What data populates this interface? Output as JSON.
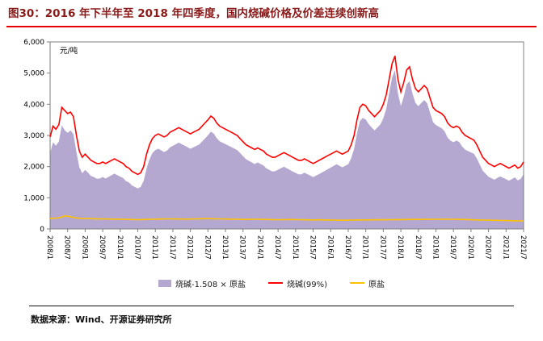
{
  "title": {
    "text": "图30：2016 年下半年至 2018 年四季度，国内烧碱价格及价差连续创新高"
  },
  "footer": {
    "text": "数据来源：Wind、开源证券研究所"
  },
  "colors": {
    "title": "#8b1a1a",
    "title_underline": "#e60000",
    "area": "#b5a8d0",
    "caustic_line": "#ff0000",
    "salt_line": "#ffc000"
  },
  "chart_data": {
    "type": "area",
    "title": "",
    "unit_label": "元/吨",
    "x_start": "2008/1",
    "x_end": "2021/7",
    "x_interval": "monthly",
    "legend_position": "bottom",
    "grid": false,
    "x_tick_labels": [
      "2008/1",
      "2008/7",
      "2009/1",
      "2009/7",
      "2010/1",
      "2010/7",
      "2011/1",
      "2011/7",
      "2012/1",
      "2012/7",
      "2013/1",
      "2013/7",
      "2014/1",
      "2014/7",
      "2015/1",
      "2015/7",
      "2016/1",
      "2016/7",
      "2017/1",
      "2017/7",
      "2018/1",
      "2018/7",
      "2019/1",
      "2019/7",
      "2020/1",
      "2020/7",
      "2021/1",
      "2021/7"
    ],
    "y_axis": {
      "min": 0,
      "max": 6000,
      "step": 1000,
      "tick_labels": [
        "0",
        "1,000",
        "2,000",
        "3,000",
        "4,000",
        "5,000",
        "6,000"
      ]
    },
    "series": [
      {
        "name": "烧碱-1.508 × 原盐",
        "type": "area",
        "color": "#b5a8d0",
        "multiplier": 1.508,
        "formula": "烧碱(99%) - 1.508 × 原盐"
      },
      {
        "name": "烧碱(99%)",
        "type": "line",
        "color": "#ff0000",
        "values": [
          2950,
          3300,
          3200,
          3350,
          3900,
          3800,
          3700,
          3750,
          3600,
          3000,
          2500,
          2300,
          2400,
          2300,
          2200,
          2150,
          2100,
          2100,
          2150,
          2100,
          2150,
          2200,
          2250,
          2200,
          2150,
          2100,
          2000,
          1950,
          1850,
          1800,
          1750,
          1800,
          2000,
          2400,
          2700,
          2900,
          3000,
          3050,
          3000,
          2950,
          3000,
          3100,
          3150,
          3200,
          3250,
          3200,
          3150,
          3100,
          3050,
          3100,
          3150,
          3200,
          3300,
          3400,
          3500,
          3620,
          3550,
          3400,
          3300,
          3250,
          3200,
          3150,
          3100,
          3050,
          3000,
          2900,
          2800,
          2700,
          2650,
          2600,
          2550,
          2600,
          2550,
          2500,
          2400,
          2350,
          2300,
          2300,
          2350,
          2400,
          2450,
          2400,
          2350,
          2300,
          2250,
          2200,
          2200,
          2250,
          2200,
          2150,
          2100,
          2150,
          2200,
          2250,
          2300,
          2350,
          2400,
          2450,
          2500,
          2450,
          2400,
          2450,
          2500,
          2700,
          3000,
          3500,
          3900,
          4000,
          3950,
          3800,
          3700,
          3600,
          3700,
          3800,
          4000,
          4300,
          4800,
          5300,
          5550,
          4800,
          4400,
          4700,
          5100,
          5200,
          4800,
          4500,
          4400,
          4500,
          4600,
          4500,
          4200,
          3900,
          3800,
          3750,
          3700,
          3600,
          3400,
          3300,
          3250,
          3300,
          3250,
          3100,
          3000,
          2950,
          2900,
          2850,
          2700,
          2500,
          2300,
          2200,
          2100,
          2050,
          2000,
          2050,
          2100,
          2050,
          2000,
          1950,
          2000,
          2050,
          1950,
          2000,
          2150
        ]
      },
      {
        "name": "原盐",
        "type": "line",
        "color": "#ffc000",
        "values": [
          340,
          345,
          350,
          360,
          380,
          420,
          410,
          390,
          370,
          355,
          345,
          340,
          335,
          330,
          330,
          325,
          325,
          320,
          320,
          320,
          318,
          316,
          315,
          314,
          312,
          310,
          308,
          305,
          302,
          300,
          298,
          300,
          302,
          305,
          308,
          310,
          312,
          315,
          318,
          320,
          322,
          322,
          320,
          320,
          318,
          318,
          316,
          315,
          318,
          320,
          322,
          325,
          328,
          330,
          330,
          328,
          326,
          324,
          322,
          320,
          318,
          316,
          314,
          312,
          310,
          308,
          306,
          306,
          308,
          308,
          310,
          310,
          308,
          306,
          304,
          302,
          300,
          298,
          298,
          298,
          300,
          300,
          302,
          302,
          300,
          298,
          296,
          294,
          292,
          290,
          290,
          290,
          292,
          292,
          290,
          288,
          286,
          284,
          282,
          280,
          280,
          280,
          282,
          284,
          286,
          288,
          290,
          290,
          290,
          290,
          292,
          292,
          294,
          294,
          296,
          296,
          298,
          298,
          300,
          300,
          300,
          302,
          302,
          304,
          304,
          306,
          306,
          306,
          308,
          308,
          308,
          310,
          310,
          310,
          312,
          312,
          312,
          310,
          310,
          308,
          306,
          304,
          302,
          300,
          295,
          292,
          290,
          288,
          286,
          284,
          282,
          280,
          278,
          276,
          274,
          272,
          268,
          266,
          264,
          262,
          260,
          258,
          260
        ]
      }
    ]
  }
}
